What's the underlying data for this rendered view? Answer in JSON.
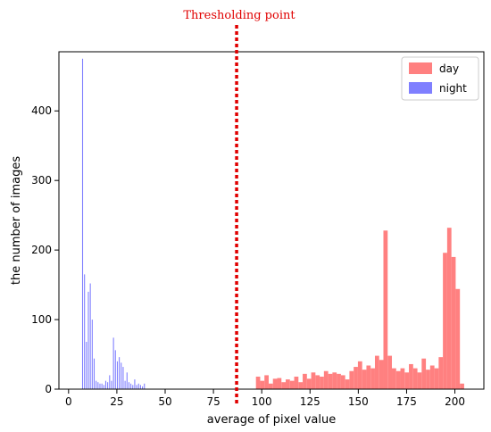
{
  "chart_data": {
    "type": "histogram",
    "annotation": {
      "label": "Thresholding point",
      "x": 87,
      "color": "#e00000"
    },
    "xlabel": "average of pixel value",
    "ylabel": "the number of images",
    "xlim": [
      -5,
      215
    ],
    "ylim": [
      0,
      485
    ],
    "xticks": [
      0,
      25,
      50,
      75,
      100,
      125,
      150,
      175,
      200
    ],
    "yticks": [
      0,
      100,
      200,
      300,
      400
    ],
    "legend": {
      "position": "top-right"
    },
    "series": [
      {
        "name": "day",
        "color": "#ff8080",
        "bin_width": 2.2,
        "x": [
          97,
          99.2,
          101.4,
          103.6,
          105.8,
          108,
          110.2,
          112.4,
          114.6,
          116.8,
          119,
          121.2,
          123.4,
          125.6,
          127.8,
          130,
          132.2,
          134.4,
          136.6,
          138.8,
          141,
          143.2,
          145.4,
          147.6,
          149.8,
          152,
          154.2,
          156.4,
          158.6,
          160.8,
          163,
          165.2,
          167.4,
          169.6,
          171.8,
          174,
          176.2,
          178.4,
          180.6,
          182.8,
          185,
          187.2,
          189.4,
          191.6,
          193.8,
          196,
          198.2,
          200.4,
          202.6
        ],
        "values": [
          18,
          12,
          20,
          8,
          15,
          16,
          10,
          14,
          12,
          18,
          10,
          22,
          15,
          24,
          20,
          18,
          26,
          22,
          24,
          22,
          20,
          14,
          26,
          32,
          40,
          28,
          34,
          30,
          48,
          42,
          228,
          48,
          30,
          26,
          30,
          24,
          36,
          30,
          24,
          44,
          28,
          34,
          30,
          46,
          196,
          232,
          190,
          144,
          8
        ]
      },
      {
        "name": "night",
        "color": "#7f7fff",
        "bin_width": 0.5,
        "x": [
          7,
          8,
          9,
          10,
          11,
          12,
          13,
          14,
          15,
          16,
          17,
          18,
          19,
          20,
          21,
          22,
          23,
          24,
          25,
          26,
          27,
          28,
          29,
          30,
          31,
          32,
          33,
          34,
          35,
          36,
          37,
          38,
          39
        ],
        "values": [
          475,
          165,
          68,
          140,
          152,
          100,
          44,
          12,
          10,
          8,
          8,
          6,
          12,
          10,
          20,
          12,
          74,
          56,
          40,
          46,
          38,
          32,
          12,
          24,
          10,
          8,
          6,
          14,
          6,
          8,
          6,
          4,
          8
        ]
      }
    ]
  }
}
